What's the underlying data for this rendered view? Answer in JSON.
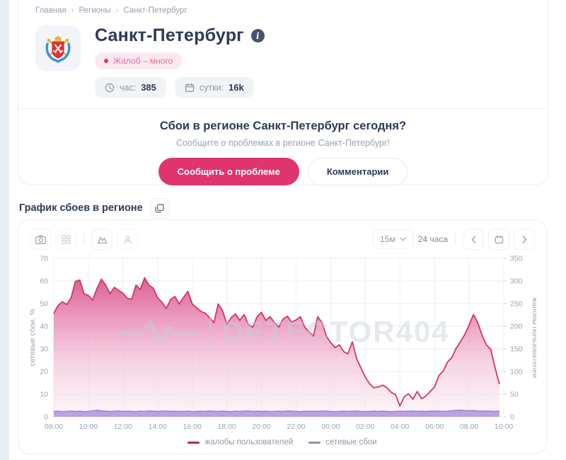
{
  "colors": {
    "accent_pink": "#e0346f",
    "navy_text": "#2e3a56",
    "badge_bg": "#fce8f1",
    "badge_text": "#ef6a9f",
    "purple_series": "#9b7fd4",
    "pink_series": "#d6336c"
  },
  "breadcrumb": {
    "separator": "›",
    "items": [
      "Главная",
      "Регионы",
      "Санкт-Петербург"
    ]
  },
  "header": {
    "title": "Санкт-Петербург",
    "info_icon": "i",
    "badge_label": "Жалоб – много",
    "stats": [
      {
        "icon": "clock-icon",
        "label": "час:",
        "value": "385"
      },
      {
        "icon": "calendar-icon",
        "label": "сутки:",
        "value": "16k"
      }
    ]
  },
  "report": {
    "heading": "Сбои в регионе Санкт-Петербург сегодня?",
    "subheading": "Сообщите о проблемах в регионе Санкт-Петербург!",
    "primary_button": "Сообщить о проблеме",
    "secondary_button": "Комментарии"
  },
  "chart_section": {
    "title": "График сбоев в регионе",
    "watermark": "DETECTOR404",
    "toolbar": {
      "interval_select": "15м",
      "range_label": "24 часа"
    }
  },
  "chart_data": {
    "type": "area",
    "title": "График сбоев в регионе",
    "x_slots": 104,
    "interval_minutes": 15,
    "x_labels": [
      "08:00",
      "10:00",
      "12:00",
      "14:00",
      "16:00",
      "18:00",
      "20:00",
      "22:00",
      "00:00",
      "02:00",
      "04:00",
      "06:00",
      "08:00",
      "10:00"
    ],
    "left_axis": {
      "label": "сетевые сбои, %",
      "range": [
        0,
        70
      ],
      "ticks": [
        0,
        10,
        20,
        30,
        40,
        50,
        60,
        70
      ]
    },
    "right_axis": {
      "label": "жалобы пользователей",
      "range": [
        0,
        350
      ],
      "ticks": [
        0,
        50,
        100,
        150,
        200,
        250,
        300,
        350
      ]
    },
    "grid": true,
    "legend_position": "bottom",
    "series": [
      {
        "name": "жалобы пользователей",
        "axis": "right",
        "color": "#d6336c",
        "values": [
          228,
          246,
          254,
          248,
          263,
          299,
          302,
          272,
          268,
          258,
          284,
          304,
          291,
          272,
          286,
          279,
          273,
          262,
          259,
          291,
          281,
          307,
          291,
          284,
          263,
          253,
          239,
          259,
          266,
          249,
          264,
          277,
          249,
          241,
          233,
          229,
          219,
          208,
          249,
          235,
          204,
          219,
          227,
          213,
          226,
          203,
          198,
          221,
          231,
          213,
          221,
          208,
          198,
          216,
          222,
          209,
          214,
          221,
          198,
          188,
          178,
          221,
          208,
          178,
          164,
          153,
          159,
          144,
          139,
          166,
          128,
          108,
          88,
          73,
          64,
          66,
          70,
          64,
          54,
          49,
          24,
          44,
          51,
          39,
          56,
          40,
          46,
          56,
          66,
          91,
          101,
          121,
          131,
          151,
          166,
          182,
          203,
          226,
          208,
          180,
          159,
          149,
          108,
          72
        ]
      },
      {
        "name": "сетевые сбои",
        "axis": "left",
        "color": "#9b7fd4",
        "values": [
          2.4,
          2.5,
          2.3,
          2.4,
          2.6,
          2.4,
          2.5,
          2.3,
          2.4,
          2.7,
          2.9,
          2.7,
          2.5,
          2.4,
          2.5,
          2.6,
          2.4,
          2.5,
          2.4,
          2.3,
          2.5,
          2.4,
          2.6,
          2.5,
          2.4,
          2.5,
          2.6,
          2.4,
          2.5,
          2.4,
          2.4,
          2.5,
          2.3,
          2.4,
          2.5,
          2.4,
          2.6,
          2.5,
          2.4,
          2.5,
          2.4,
          2.3,
          2.5,
          2.4,
          2.5,
          2.6,
          2.4,
          2.5,
          2.4,
          2.5,
          2.3,
          2.4,
          2.5,
          2.4,
          2.6,
          2.5,
          2.4,
          2.3,
          2.5,
          2.4,
          2.5,
          2.4,
          2.6,
          2.5,
          2.4,
          2.3,
          2.4,
          2.5,
          2.4,
          2.5,
          2.6,
          2.4,
          2.3,
          2.4,
          2.5,
          2.4,
          2.5,
          2.4,
          2.3,
          2.4,
          2.5,
          2.4,
          2.5,
          2.6,
          2.4,
          2.5,
          2.4,
          2.5,
          2.6,
          2.5,
          2.4,
          2.5,
          2.7,
          2.9,
          3.0,
          2.8,
          2.7,
          2.8,
          2.6,
          2.5,
          2.6,
          2.5,
          2.4,
          2.5
        ]
      }
    ],
    "legend": [
      {
        "label": "жалобы пользователей",
        "color": "#b02a5c"
      },
      {
        "label": "сетевые сбои",
        "color": "#8a93ad"
      }
    ]
  }
}
